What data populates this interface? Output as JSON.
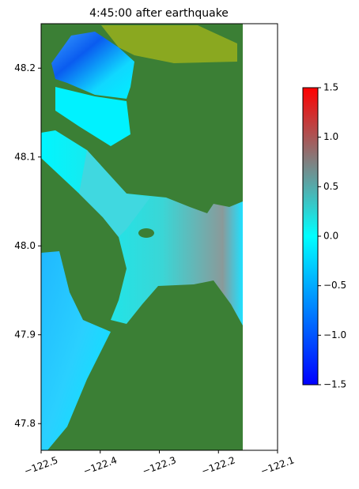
{
  "chart_data": {
    "type": "heatmap",
    "title": "4:45:00 after earthquake",
    "xlim": [
      -122.5,
      -122.1
    ],
    "xticks": [
      {
        "value": -122.5,
        "label": "−122.5"
      },
      {
        "value": -122.4,
        "label": "−122.4"
      },
      {
        "value": -122.3,
        "label": "−122.3"
      },
      {
        "value": -122.2,
        "label": "−122.2"
      },
      {
        "value": -122.1,
        "label": "−122.1"
      }
    ],
    "ylim": [
      47.77,
      48.25
    ],
    "yticks": [
      47.8,
      47.9,
      {
        "value": 48.0,
        "label": "48.0"
      },
      48.1,
      48.2
    ],
    "colorbar": {
      "lim": [
        -1.5,
        1.5
      ],
      "ticks": [
        {
          "value": -1.5,
          "label": "−1.5"
        },
        {
          "value": -1.0,
          "label": "−1.0"
        },
        {
          "value": -0.5,
          "label": "−0.5"
        },
        {
          "value": 0,
          "label": "0.0"
        },
        0.5,
        {
          "value": 1.0,
          "label": "1.0"
        },
        1.5
      ],
      "colors": [
        {
          "value": -1.5,
          "color": "#0000ff"
        },
        {
          "value": 0,
          "color": "#00ffff"
        },
        {
          "value": 0.75,
          "color": "#808080"
        },
        {
          "value": 1.5,
          "color": "#ff0000"
        }
      ]
    }
  }
}
